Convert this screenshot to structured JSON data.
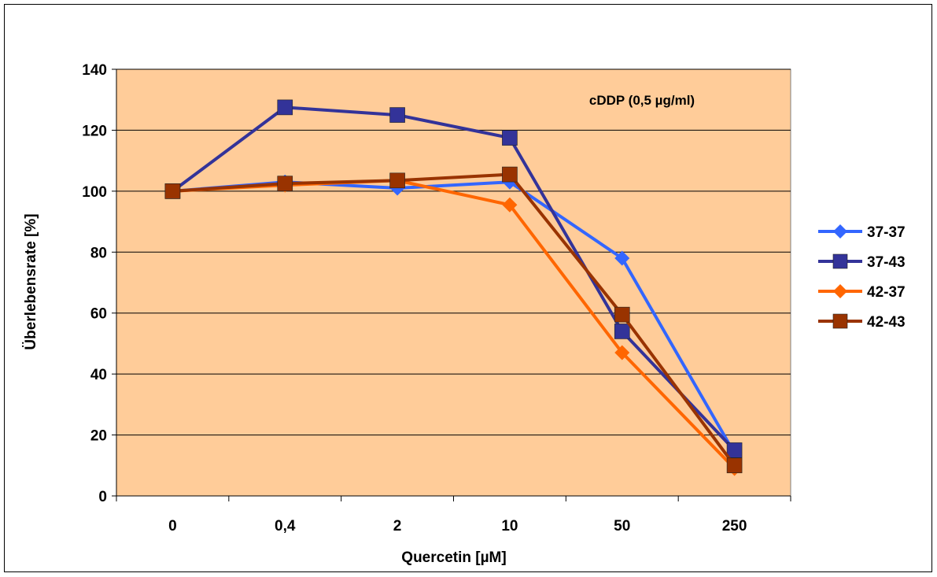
{
  "chart_data": {
    "type": "line",
    "title": "",
    "annotation": "cDDP (0,5 µg/ml)",
    "xlabel": "Quercetin [µM]",
    "ylabel": "Überlebensrate [%]",
    "categories": [
      "0",
      "0,4",
      "2",
      "10",
      "50",
      "250"
    ],
    "ylim": [
      0,
      140
    ],
    "yticks": [
      0,
      20,
      40,
      60,
      80,
      100,
      120,
      140
    ],
    "grid": true,
    "legend": "right",
    "plot_background": "#FFCC99",
    "series": [
      {
        "name": "37-37",
        "color": "#3366FF",
        "marker": "diamond",
        "values": [
          100,
          103,
          101,
          103,
          78,
          14
        ]
      },
      {
        "name": "37-43",
        "color": "#333399",
        "marker": "square",
        "values": [
          100,
          127.5,
          125,
          117.5,
          54,
          15
        ]
      },
      {
        "name": "42-37",
        "color": "#FF6600",
        "marker": "diamond",
        "values": [
          100,
          102,
          103.5,
          95.5,
          47,
          9
        ]
      },
      {
        "name": "42-43",
        "color": "#993300",
        "marker": "square",
        "values": [
          100,
          102.5,
          103.5,
          105.5,
          59.5,
          10
        ]
      }
    ]
  }
}
